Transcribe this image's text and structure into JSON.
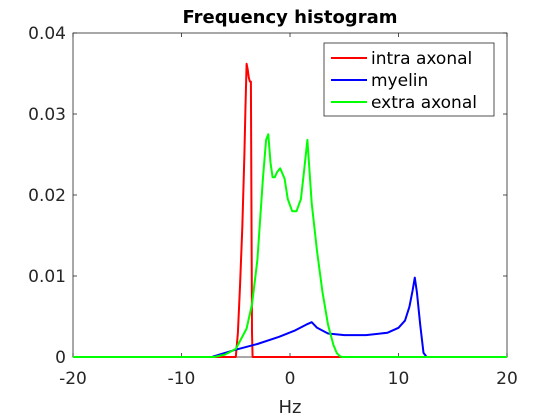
{
  "chart_data": {
    "type": "line",
    "title": "Frequency histogram",
    "xlabel": "Hz",
    "ylabel": "",
    "xlim": [
      -20,
      20
    ],
    "ylim": [
      0,
      0.04
    ],
    "x_ticks": [
      "-20",
      "-10",
      "0",
      "10",
      "20"
    ],
    "x_tick_values": [
      -20,
      -10,
      0,
      10,
      20
    ],
    "y_ticks": [
      "0",
      "0.01",
      "0.02",
      "0.03",
      "0.04"
    ],
    "y_tick_values": [
      0,
      0.01,
      0.02,
      0.03,
      0.04
    ],
    "grid": false,
    "legend_position": "top-right",
    "series": [
      {
        "name": "intra axonal",
        "color": "#ff0000",
        "x": [
          -20,
          -5.2,
          -5.0,
          -4.8,
          -4.6,
          -4.4,
          -4.2,
          -4.1,
          -4.0,
          -3.9,
          -3.8,
          -3.7,
          -3.6,
          -3.5,
          -3.45,
          20
        ],
        "y": [
          0,
          0,
          0.0,
          0.003,
          0.009,
          0.016,
          0.025,
          0.031,
          0.0362,
          0.0355,
          0.0345,
          0.034,
          0.034,
          0.003,
          0,
          0
        ]
      },
      {
        "name": "myelin",
        "color": "#0000ff",
        "x": [
          -20,
          -7.2,
          -6.5,
          -5.0,
          -3.0,
          -1.0,
          0.5,
          1.5,
          2.0,
          2.5,
          3.5,
          5.0,
          7.0,
          9.0,
          10.0,
          10.6,
          11.0,
          11.3,
          11.5,
          11.7,
          12.0,
          12.3,
          12.6,
          20
        ],
        "y": [
          0,
          0,
          0.0003,
          0.0009,
          0.0016,
          0.0025,
          0.0033,
          0.004,
          0.0043,
          0.0036,
          0.0029,
          0.0027,
          0.0027,
          0.003,
          0.0036,
          0.0045,
          0.0062,
          0.0082,
          0.0098,
          0.008,
          0.004,
          0.0005,
          0,
          0
        ]
      },
      {
        "name": "extra axonal",
        "color": "#00ff00",
        "x": [
          -20,
          -7.0,
          -6.0,
          -5.0,
          -4.0,
          -3.5,
          -3.0,
          -2.5,
          -2.2,
          -2.0,
          -1.8,
          -1.6,
          -1.4,
          -1.2,
          -0.9,
          -0.5,
          -0.2,
          0.2,
          0.6,
          1.0,
          1.3,
          1.6,
          2.0,
          2.5,
          3.0,
          3.5,
          4.0,
          4.3,
          4.6,
          4.8,
          20
        ],
        "y": [
          0,
          0,
          0.0003,
          0.001,
          0.0035,
          0.0065,
          0.012,
          0.022,
          0.0268,
          0.0275,
          0.024,
          0.0222,
          0.0222,
          0.0228,
          0.0233,
          0.022,
          0.0195,
          0.018,
          0.018,
          0.0195,
          0.023,
          0.0268,
          0.019,
          0.013,
          0.008,
          0.004,
          0.0015,
          0.0005,
          0.0001,
          0,
          0
        ]
      }
    ]
  }
}
